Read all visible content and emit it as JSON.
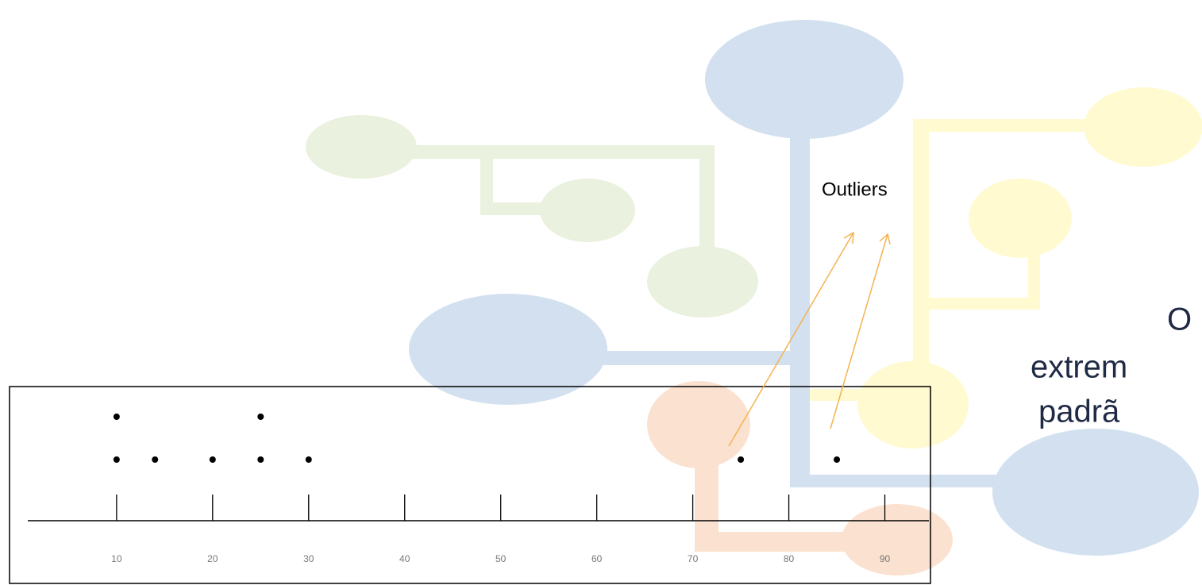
{
  "chart_data": {
    "type": "dotplot",
    "annotation": "Outliers",
    "x": [
      10,
      14,
      20,
      25,
      30,
      75,
      85
    ],
    "values": [
      2,
      1,
      1,
      2,
      1,
      1,
      1
    ],
    "color": "#000000",
    "xlim": [
      1,
      95
    ],
    "xticks": [
      10,
      20,
      30,
      40,
      50,
      60,
      70,
      80,
      90
    ]
  },
  "slide": {
    "text_lines": [
      "O",
      "extrem",
      "padrã"
    ]
  }
}
